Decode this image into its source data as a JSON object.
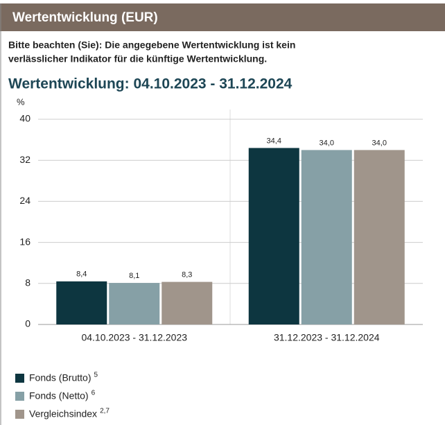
{
  "header": {
    "title": "Wertentwicklung (EUR)"
  },
  "note": [
    "Bitte beachten (Sie): Die angegebene Wertentwicklung ist kein",
    "verlässlicher Indikator für die künftige Wertentwicklung."
  ],
  "chart_data": {
    "type": "bar",
    "title": "Wertentwicklung: 04.10.2023 - 31.12.2024",
    "y_label": "%",
    "categories": [
      "04.10.2023 - 31.12.2023",
      "31.12.2023 - 31.12.2024"
    ],
    "series": [
      {
        "name": "Fonds (Brutto)",
        "footnote": "5",
        "color": "#0d3640",
        "values": [
          8.4,
          34.4
        ],
        "value_labels": [
          "8,4",
          "34,4"
        ]
      },
      {
        "name": "Fonds (Netto)",
        "footnote": "6",
        "color": "#86a0a6",
        "values": [
          8.1,
          34.0
        ],
        "value_labels": [
          "8,1",
          "34,0"
        ]
      },
      {
        "name": "Vergleichsindex",
        "footnote": "2,7",
        "color": "#a0958b",
        "values": [
          8.3,
          34.0
        ],
        "value_labels": [
          "8,3",
          "34,0"
        ]
      }
    ],
    "ylim": [
      0,
      40
    ],
    "yticks": [
      0,
      8,
      16,
      24,
      32,
      40
    ],
    "grid": true
  }
}
